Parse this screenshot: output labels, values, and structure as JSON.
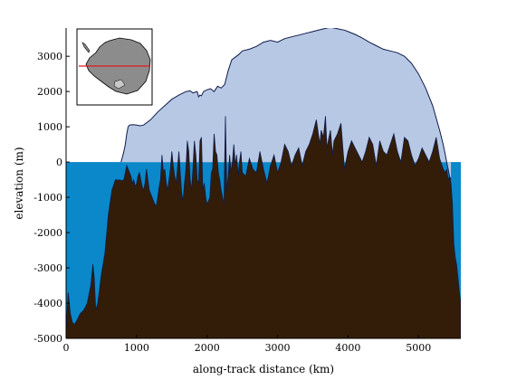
{
  "chart_data": {
    "type": "area",
    "title": "",
    "xlabel": "along-track distance (km)",
    "ylabel": "elevation (m)",
    "xlim": [
      0,
      5600
    ],
    "ylim": [
      -5000,
      3800
    ],
    "xticks": [
      0,
      1000,
      2000,
      3000,
      4000,
      5000
    ],
    "yticks": [
      3000,
      2000,
      1000,
      0,
      -1000,
      -2000,
      -3000,
      -4000,
      -5000
    ],
    "grid": false,
    "colors": {
      "ocean": "#0a88c9",
      "ice_sheet": "#b7c8e4",
      "ice_outline": "#0f1b4a",
      "bedrock": "#341d08",
      "bedrock_outline": "#0f1b4a",
      "inset_land": "#8c8c8c",
      "inset_track": "#e0191e"
    },
    "ocean_level": 0,
    "series": [
      {
        "role": "ice-surface",
        "x": [
          780,
          800,
          820,
          840,
          860,
          880,
          900,
          950,
          1000,
          1050,
          1100,
          1200,
          1300,
          1400,
          1500,
          1600,
          1700,
          1760,
          1800,
          1830,
          1860,
          1880,
          1900,
          1920,
          1950,
          2000,
          2050,
          2100,
          2150,
          2200,
          2250,
          2300,
          2350,
          2450,
          2500,
          2600,
          2700,
          2800,
          2900,
          3000,
          3100,
          3200,
          3300,
          3400,
          3500,
          3600,
          3700,
          3750,
          3800,
          3850,
          3900,
          3950,
          4000,
          4100,
          4200,
          4300,
          4400,
          4500,
          4600,
          4700,
          4800,
          4900,
          5000,
          5100,
          5200,
          5300,
          5350,
          5380,
          5400,
          5420,
          5440,
          5460
        ],
        "y": [
          0,
          150,
          300,
          500,
          800,
          1000,
          1050,
          1060,
          1050,
          1030,
          1050,
          1200,
          1420,
          1600,
          1780,
          1900,
          2000,
          2020,
          1960,
          1980,
          2000,
          1850,
          1900,
          1880,
          2000,
          2050,
          2080,
          2000,
          2150,
          2100,
          2200,
          2600,
          2900,
          3050,
          3150,
          3200,
          3280,
          3400,
          3450,
          3400,
          3500,
          3550,
          3600,
          3650,
          3700,
          3750,
          3800,
          3820,
          3800,
          3780,
          3760,
          3740,
          3700,
          3620,
          3520,
          3400,
          3300,
          3200,
          3150,
          3100,
          3000,
          2800,
          2500,
          2100,
          1600,
          900,
          500,
          200,
          0,
          -200,
          -400,
          -500
        ]
      },
      {
        "role": "bedrock",
        "x": [
          0,
          30,
          60,
          90,
          120,
          150,
          200,
          250,
          300,
          350,
          380,
          400,
          420,
          450,
          500,
          550,
          600,
          650,
          700,
          720,
          740,
          760,
          780,
          800,
          820,
          840,
          860,
          880,
          900,
          920,
          940,
          960,
          980,
          1000,
          1020,
          1040,
          1060,
          1080,
          1100,
          1120,
          1140,
          1160,
          1180,
          1200,
          1220,
          1240,
          1260,
          1280,
          1300,
          1320,
          1340,
          1360,
          1380,
          1400,
          1420,
          1440,
          1460,
          1480,
          1500,
          1520,
          1540,
          1560,
          1580,
          1600,
          1620,
          1640,
          1660,
          1680,
          1700,
          1720,
          1740,
          1760,
          1780,
          1800,
          1820,
          1840,
          1860,
          1880,
          1900,
          1920,
          1940,
          1960,
          1980,
          2000,
          2020,
          2040,
          2060,
          2080,
          2100,
          2120,
          2140,
          2160,
          2180,
          2200,
          2220,
          2240,
          2260,
          2280,
          2300,
          2320,
          2340,
          2360,
          2380,
          2400,
          2420,
          2440,
          2460,
          2480,
          2500,
          2550,
          2600,
          2650,
          2700,
          2750,
          2800,
          2850,
          2900,
          2950,
          3000,
          3050,
          3100,
          3150,
          3200,
          3250,
          3300,
          3350,
          3400,
          3450,
          3500,
          3550,
          3600,
          3620,
          3650,
          3680,
          3700,
          3720,
          3750,
          3780,
          3800,
          3850,
          3900,
          3950,
          4000,
          4050,
          4100,
          4150,
          4200,
          4250,
          4300,
          4350,
          4400,
          4450,
          4500,
          4550,
          4600,
          4650,
          4700,
          4750,
          4800,
          4850,
          4900,
          4950,
          5000,
          5050,
          5100,
          5150,
          5200,
          5250,
          5300,
          5350,
          5380,
          5400,
          5420,
          5440,
          5460,
          5480,
          5500,
          5520,
          5540,
          5560,
          5580,
          5600
        ],
        "y": [
          -4800,
          -3700,
          -4300,
          -4550,
          -4600,
          -4500,
          -4300,
          -4200,
          -4000,
          -3500,
          -2900,
          -3300,
          -4200,
          -4000,
          -3200,
          -2600,
          -1500,
          -800,
          -500,
          -500,
          -520,
          -500,
          -530,
          -520,
          -500,
          -300,
          -100,
          -200,
          -300,
          -400,
          -600,
          -500,
          -700,
          -600,
          -400,
          -300,
          -500,
          -700,
          -800,
          -600,
          -200,
          -500,
          -800,
          -900,
          -1000,
          -1100,
          -1200,
          -1250,
          -1000,
          -700,
          -500,
          200,
          -300,
          -200,
          -600,
          -800,
          -500,
          -200,
          300,
          -100,
          -400,
          -600,
          -200,
          300,
          -300,
          -900,
          -1100,
          -600,
          -200,
          600,
          300,
          -500,
          -800,
          -200,
          600,
          200,
          -500,
          -600,
          600,
          700,
          -800,
          -600,
          -1000,
          -1200,
          -1100,
          -1000,
          -300,
          -200,
          800,
          300,
          200,
          -300,
          -500,
          -800,
          -1000,
          -1200,
          1300,
          -800,
          -400,
          200,
          -300,
          0,
          500,
          -100,
          200,
          -400,
          0,
          300,
          -300,
          -400,
          100,
          -200,
          -300,
          300,
          -200,
          -600,
          -100,
          200,
          -300,
          0,
          500,
          300,
          -100,
          200,
          400,
          -100,
          300,
          500,
          800,
          1200,
          500,
          900,
          700,
          1300,
          400,
          600,
          900,
          200,
          600,
          800,
          1100,
          -200,
          300,
          600,
          400,
          200,
          0,
          300,
          700,
          500,
          -100,
          600,
          300,
          200,
          500,
          800,
          300,
          0,
          700,
          600,
          200,
          -100,
          100,
          400,
          200,
          0,
          300,
          700,
          100,
          -200,
          -300,
          -200,
          -500,
          -400,
          -600,
          -1200,
          -2300,
          -2700,
          -2900,
          -3300,
          -3700,
          -4000
        ]
      }
    ],
    "inset": {
      "region": "Antarctica",
      "track": "profile line across continent"
    }
  }
}
